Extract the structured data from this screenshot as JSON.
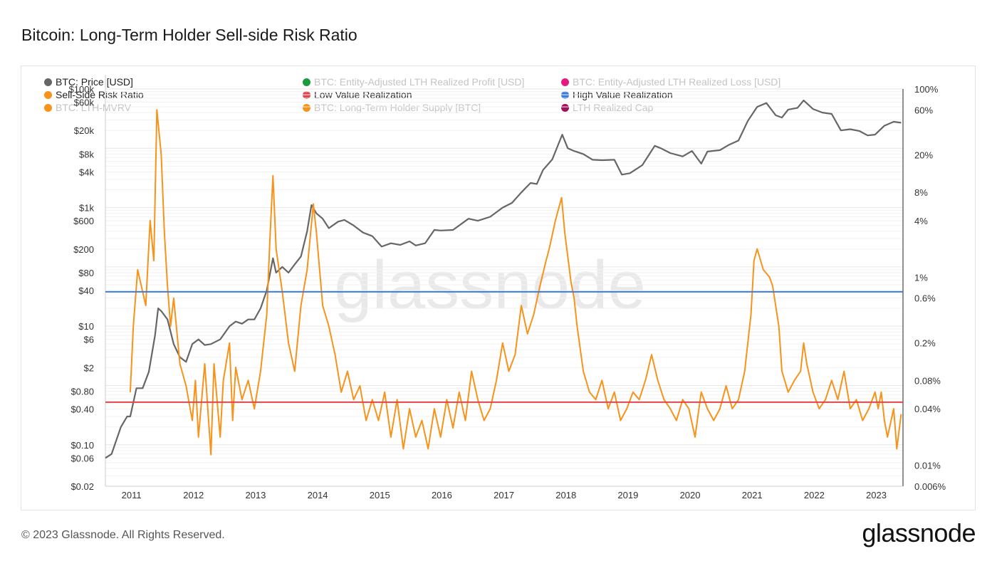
{
  "title": "Bitcoin: Long-Term Holder Sell-side Risk Ratio",
  "footer": "© 2023 Glassnode. All Rights Reserved.",
  "brand": "glassnode",
  "watermark": "glassnode",
  "legend": [
    {
      "label": "BTC: Price [USD]",
      "color": "#666666",
      "active": true
    },
    {
      "label": "BTC: Entity-Adjusted LTH Realized Profit [USD]",
      "color": "#1a9b3c",
      "active": false
    },
    {
      "label": "BTC: Entity-Adjusted LTH Realized Loss [USD]",
      "color": "#e6197f",
      "active": false
    },
    {
      "label": "Sell-Side Risk Ratio",
      "color": "#f7931a",
      "active": true
    },
    {
      "label": "Low Value Realization",
      "color": "#e0474c",
      "active": true
    },
    {
      "label": "High Value Realization",
      "color": "#3b7ddd",
      "active": true
    },
    {
      "label": "BTC: LTH-MVRV",
      "color": "#f7931a",
      "active": false
    },
    {
      "label": "BTC: Long-Term Holder Supply [BTC]",
      "color": "#f7931a",
      "active": false
    },
    {
      "label": "LTH Realized Cap",
      "color": "#a0125a",
      "active": false
    }
  ],
  "chart_data": {
    "type": "line",
    "title": "Bitcoin: Long-Term Holder Sell-side Risk Ratio",
    "x_ticks": [
      "2011",
      "2012",
      "2013",
      "2014",
      "2015",
      "2016",
      "2017",
      "2018",
      "2019",
      "2020",
      "2021",
      "2022",
      "2023"
    ],
    "y_left": {
      "scale": "log",
      "range": [
        0.02,
        100000
      ],
      "ticks": [
        "$100k",
        "$60k",
        "$20k",
        "$8k",
        "$4k",
        "$1k",
        "$600",
        "$200",
        "$80",
        "$40",
        "$10",
        "$6",
        "$2",
        "$0.80",
        "$0.40",
        "$0.10",
        "$0.06",
        "$0.02"
      ],
      "tick_values": [
        100000,
        60000,
        20000,
        8000,
        4000,
        1000,
        600,
        200,
        80,
        40,
        10,
        6,
        2,
        0.8,
        0.4,
        0.1,
        0.06,
        0.02
      ]
    },
    "y_right": {
      "scale": "log",
      "range": [
        0.006,
        100
      ],
      "ticks": [
        "100%",
        "60%",
        "20%",
        "8%",
        "4%",
        "1%",
        "0.6%",
        "0.2%",
        "0.08%",
        "0.04%",
        "0.01%",
        "0.006%"
      ],
      "tick_values": [
        100,
        60,
        20,
        8,
        4,
        1,
        0.6,
        0.2,
        0.08,
        0.04,
        0.01,
        0.006
      ]
    },
    "grid": true,
    "legend_position": "top",
    "thresholds": [
      {
        "name": "High Value Realization",
        "value_pct": 0.7,
        "color": "#3b7ddd"
      },
      {
        "name": "Low Value Realization",
        "value_pct": 0.047,
        "color": "#e0474c"
      }
    ],
    "series": [
      {
        "name": "BTC: Price [USD]",
        "axis": "left",
        "color": "#666666",
        "points": [
          [
            2010.6,
            0.06
          ],
          [
            2010.7,
            0.07
          ],
          [
            2010.75,
            0.1
          ],
          [
            2010.85,
            0.2
          ],
          [
            2010.95,
            0.3
          ],
          [
            2011.0,
            0.3
          ],
          [
            2011.1,
            0.9
          ],
          [
            2011.2,
            0.9
          ],
          [
            2011.3,
            1.7
          ],
          [
            2011.4,
            7
          ],
          [
            2011.45,
            20
          ],
          [
            2011.5,
            18
          ],
          [
            2011.6,
            13
          ],
          [
            2011.7,
            5
          ],
          [
            2011.8,
            3
          ],
          [
            2011.9,
            2.5
          ],
          [
            2012.0,
            5
          ],
          [
            2012.1,
            6
          ],
          [
            2012.2,
            4.8
          ],
          [
            2012.3,
            5
          ],
          [
            2012.45,
            6
          ],
          [
            2012.6,
            10
          ],
          [
            2012.7,
            12
          ],
          [
            2012.8,
            11
          ],
          [
            2012.9,
            13
          ],
          [
            2013.0,
            13
          ],
          [
            2013.1,
            20
          ],
          [
            2013.2,
            40
          ],
          [
            2013.3,
            140
          ],
          [
            2013.35,
            80
          ],
          [
            2013.45,
            100
          ],
          [
            2013.55,
            80
          ],
          [
            2013.65,
            110
          ],
          [
            2013.75,
            150
          ],
          [
            2013.85,
            400
          ],
          [
            2013.92,
            1100
          ],
          [
            2014.0,
            800
          ],
          [
            2014.1,
            650
          ],
          [
            2014.2,
            450
          ],
          [
            2014.35,
            580
          ],
          [
            2014.45,
            620
          ],
          [
            2014.6,
            500
          ],
          [
            2014.75,
            380
          ],
          [
            2014.9,
            330
          ],
          [
            2015.05,
            220
          ],
          [
            2015.2,
            250
          ],
          [
            2015.35,
            235
          ],
          [
            2015.5,
            270
          ],
          [
            2015.6,
            230
          ],
          [
            2015.75,
            250
          ],
          [
            2015.9,
            420
          ],
          [
            2016.0,
            410
          ],
          [
            2016.2,
            420
          ],
          [
            2016.45,
            650
          ],
          [
            2016.6,
            600
          ],
          [
            2016.8,
            700
          ],
          [
            2017.0,
            1000
          ],
          [
            2017.15,
            1200
          ],
          [
            2017.3,
            1800
          ],
          [
            2017.45,
            2600
          ],
          [
            2017.55,
            2500
          ],
          [
            2017.65,
            4300
          ],
          [
            2017.8,
            6500
          ],
          [
            2017.96,
            17000
          ],
          [
            2018.05,
            10000
          ],
          [
            2018.15,
            9000
          ],
          [
            2018.3,
            8000
          ],
          [
            2018.45,
            6400
          ],
          [
            2018.6,
            6300
          ],
          [
            2018.8,
            6400
          ],
          [
            2018.92,
            3600
          ],
          [
            2019.05,
            3800
          ],
          [
            2019.25,
            5200
          ],
          [
            2019.45,
            11000
          ],
          [
            2019.55,
            10000
          ],
          [
            2019.7,
            8300
          ],
          [
            2019.9,
            7300
          ],
          [
            2020.05,
            9000
          ],
          [
            2020.2,
            5500
          ],
          [
            2020.3,
            8800
          ],
          [
            2020.5,
            9300
          ],
          [
            2020.65,
            11500
          ],
          [
            2020.8,
            13500
          ],
          [
            2020.95,
            29000
          ],
          [
            2021.1,
            50000
          ],
          [
            2021.25,
            58000
          ],
          [
            2021.4,
            36000
          ],
          [
            2021.5,
            33000
          ],
          [
            2021.6,
            45000
          ],
          [
            2021.75,
            48000
          ],
          [
            2021.85,
            64000
          ],
          [
            2022.0,
            46000
          ],
          [
            2022.15,
            40000
          ],
          [
            2022.3,
            38000
          ],
          [
            2022.45,
            20000
          ],
          [
            2022.6,
            21000
          ],
          [
            2022.75,
            19500
          ],
          [
            2022.88,
            16500
          ],
          [
            2023.0,
            17000
          ],
          [
            2023.15,
            24000
          ],
          [
            2023.3,
            28000
          ],
          [
            2023.42,
            27000
          ]
        ]
      },
      {
        "name": "Sell-Side Risk Ratio",
        "axis": "right",
        "color": "#f7931a",
        "points": [
          [
            2011.0,
            0.06
          ],
          [
            2011.05,
            0.3
          ],
          [
            2011.12,
            1.2
          ],
          [
            2011.2,
            0.7
          ],
          [
            2011.25,
            0.5
          ],
          [
            2011.32,
            4
          ],
          [
            2011.38,
            1.5
          ],
          [
            2011.43,
            60
          ],
          [
            2011.5,
            20
          ],
          [
            2011.55,
            3
          ],
          [
            2011.6,
            0.8
          ],
          [
            2011.65,
            0.3
          ],
          [
            2011.7,
            0.6
          ],
          [
            2011.8,
            0.12
          ],
          [
            2011.9,
            0.07
          ],
          [
            2012.0,
            0.03
          ],
          [
            2012.05,
            0.08
          ],
          [
            2012.1,
            0.02
          ],
          [
            2012.2,
            0.12
          ],
          [
            2012.25,
            0.04
          ],
          [
            2012.3,
            0.013
          ],
          [
            2012.35,
            0.12
          ],
          [
            2012.45,
            0.02
          ],
          [
            2012.5,
            0.08
          ],
          [
            2012.6,
            0.2
          ],
          [
            2012.65,
            0.03
          ],
          [
            2012.7,
            0.11
          ],
          [
            2012.8,
            0.05
          ],
          [
            2012.9,
            0.08
          ],
          [
            2013.0,
            0.04
          ],
          [
            2013.1,
            0.1
          ],
          [
            2013.2,
            0.4
          ],
          [
            2013.25,
            2.5
          ],
          [
            2013.3,
            12
          ],
          [
            2013.35,
            2
          ],
          [
            2013.45,
            0.7
          ],
          [
            2013.55,
            0.2
          ],
          [
            2013.65,
            0.1
          ],
          [
            2013.75,
            0.5
          ],
          [
            2013.85,
            1.2
          ],
          [
            2013.95,
            6
          ],
          [
            2014.0,
            3
          ],
          [
            2014.1,
            0.5
          ],
          [
            2014.2,
            0.3
          ],
          [
            2014.3,
            0.15
          ],
          [
            2014.4,
            0.06
          ],
          [
            2014.5,
            0.1
          ],
          [
            2014.6,
            0.05
          ],
          [
            2014.7,
            0.07
          ],
          [
            2014.8,
            0.03
          ],
          [
            2014.9,
            0.05
          ],
          [
            2015.0,
            0.03
          ],
          [
            2015.1,
            0.06
          ],
          [
            2015.2,
            0.02
          ],
          [
            2015.3,
            0.05
          ],
          [
            2015.4,
            0.015
          ],
          [
            2015.5,
            0.04
          ],
          [
            2015.6,
            0.02
          ],
          [
            2015.7,
            0.03
          ],
          [
            2015.8,
            0.015
          ],
          [
            2015.9,
            0.04
          ],
          [
            2016.0,
            0.02
          ],
          [
            2016.1,
            0.05
          ],
          [
            2016.2,
            0.025
          ],
          [
            2016.3,
            0.06
          ],
          [
            2016.4,
            0.03
          ],
          [
            2016.5,
            0.1
          ],
          [
            2016.6,
            0.05
          ],
          [
            2016.7,
            0.03
          ],
          [
            2016.8,
            0.04
          ],
          [
            2016.9,
            0.08
          ],
          [
            2017.0,
            0.2
          ],
          [
            2017.1,
            0.1
          ],
          [
            2017.2,
            0.15
          ],
          [
            2017.3,
            0.5
          ],
          [
            2017.4,
            0.25
          ],
          [
            2017.5,
            0.4
          ],
          [
            2017.6,
            0.8
          ],
          [
            2017.7,
            1.5
          ],
          [
            2017.75,
            2
          ],
          [
            2017.85,
            4
          ],
          [
            2017.95,
            7
          ],
          [
            2018.0,
            3
          ],
          [
            2018.1,
            0.9
          ],
          [
            2018.15,
            0.6
          ],
          [
            2018.2,
            0.3
          ],
          [
            2018.3,
            0.1
          ],
          [
            2018.4,
            0.06
          ],
          [
            2018.5,
            0.05
          ],
          [
            2018.6,
            0.08
          ],
          [
            2018.7,
            0.04
          ],
          [
            2018.8,
            0.06
          ],
          [
            2018.9,
            0.03
          ],
          [
            2019.0,
            0.04
          ],
          [
            2019.1,
            0.06
          ],
          [
            2019.2,
            0.05
          ],
          [
            2019.3,
            0.08
          ],
          [
            2019.4,
            0.15
          ],
          [
            2019.5,
            0.08
          ],
          [
            2019.6,
            0.05
          ],
          [
            2019.7,
            0.04
          ],
          [
            2019.8,
            0.03
          ],
          [
            2019.9,
            0.05
          ],
          [
            2020.0,
            0.04
          ],
          [
            2020.1,
            0.02
          ],
          [
            2020.2,
            0.06
          ],
          [
            2020.3,
            0.04
          ],
          [
            2020.4,
            0.03
          ],
          [
            2020.5,
            0.04
          ],
          [
            2020.6,
            0.07
          ],
          [
            2020.7,
            0.04
          ],
          [
            2020.8,
            0.05
          ],
          [
            2020.9,
            0.1
          ],
          [
            2021.0,
            0.4
          ],
          [
            2021.05,
            1.5
          ],
          [
            2021.1,
            2
          ],
          [
            2021.2,
            1.2
          ],
          [
            2021.3,
            1
          ],
          [
            2021.35,
            0.8
          ],
          [
            2021.45,
            0.3
          ],
          [
            2021.5,
            0.1
          ],
          [
            2021.6,
            0.06
          ],
          [
            2021.7,
            0.08
          ],
          [
            2021.8,
            0.1
          ],
          [
            2021.85,
            0.2
          ],
          [
            2021.9,
            0.12
          ],
          [
            2022.0,
            0.06
          ],
          [
            2022.1,
            0.04
          ],
          [
            2022.2,
            0.05
          ],
          [
            2022.3,
            0.08
          ],
          [
            2022.4,
            0.05
          ],
          [
            2022.5,
            0.1
          ],
          [
            2022.6,
            0.04
          ],
          [
            2022.7,
            0.05
          ],
          [
            2022.8,
            0.03
          ],
          [
            2022.9,
            0.04
          ],
          [
            2023.0,
            0.06
          ],
          [
            2023.05,
            0.04
          ],
          [
            2023.1,
            0.06
          ],
          [
            2023.15,
            0.03
          ],
          [
            2023.2,
            0.02
          ],
          [
            2023.3,
            0.04
          ],
          [
            2023.35,
            0.015
          ],
          [
            2023.42,
            0.035
          ]
        ]
      }
    ]
  }
}
